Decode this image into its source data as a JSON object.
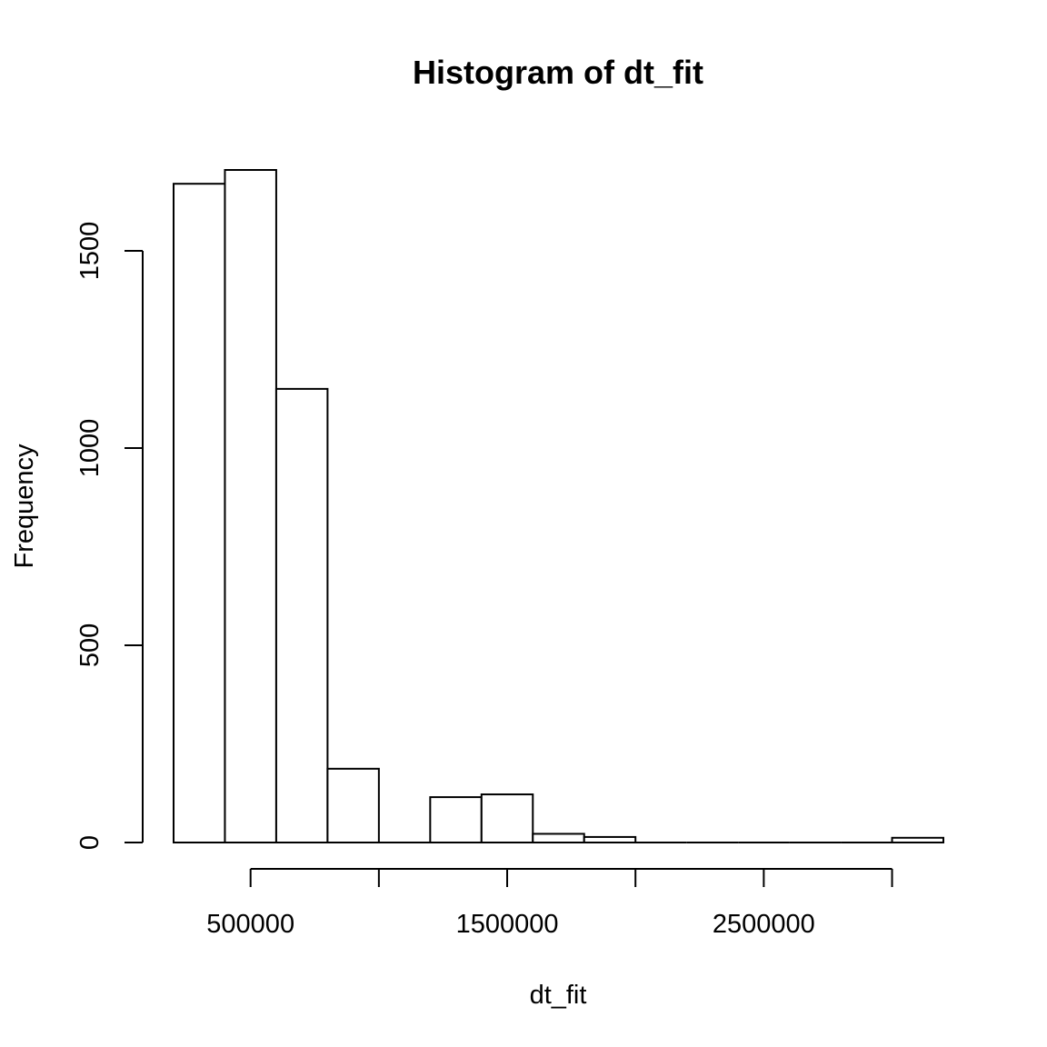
{
  "chart_data": {
    "type": "bar",
    "title": "Histogram of dt_fit",
    "xlabel": "dt_fit",
    "ylabel": "Frequency",
    "bin_edges": [
      200000,
      400000,
      600000,
      800000,
      1000000,
      1200000,
      1400000,
      1600000,
      1800000,
      2000000,
      2200000,
      2400000,
      2600000,
      2800000,
      3000000,
      3200000
    ],
    "values": [
      1670,
      1705,
      1150,
      187,
      0,
      115,
      122,
      22,
      14,
      0,
      0,
      0,
      0,
      0,
      12
    ],
    "xlim": [
      200000,
      3200000
    ],
    "ylim": [
      0,
      1705
    ],
    "x_ticks": [
      500000,
      1000000,
      1500000,
      2000000,
      2500000,
      3000000
    ],
    "x_tick_labels": [
      "500000",
      "1500000",
      "2500000"
    ],
    "x_tick_labels_at": [
      500000,
      1500000,
      2500000
    ],
    "y_ticks": [
      0,
      500,
      1000,
      1500
    ],
    "y_tick_labels": [
      "0",
      "500",
      "1000",
      "1500"
    ],
    "grid": false,
    "legend": "none"
  }
}
